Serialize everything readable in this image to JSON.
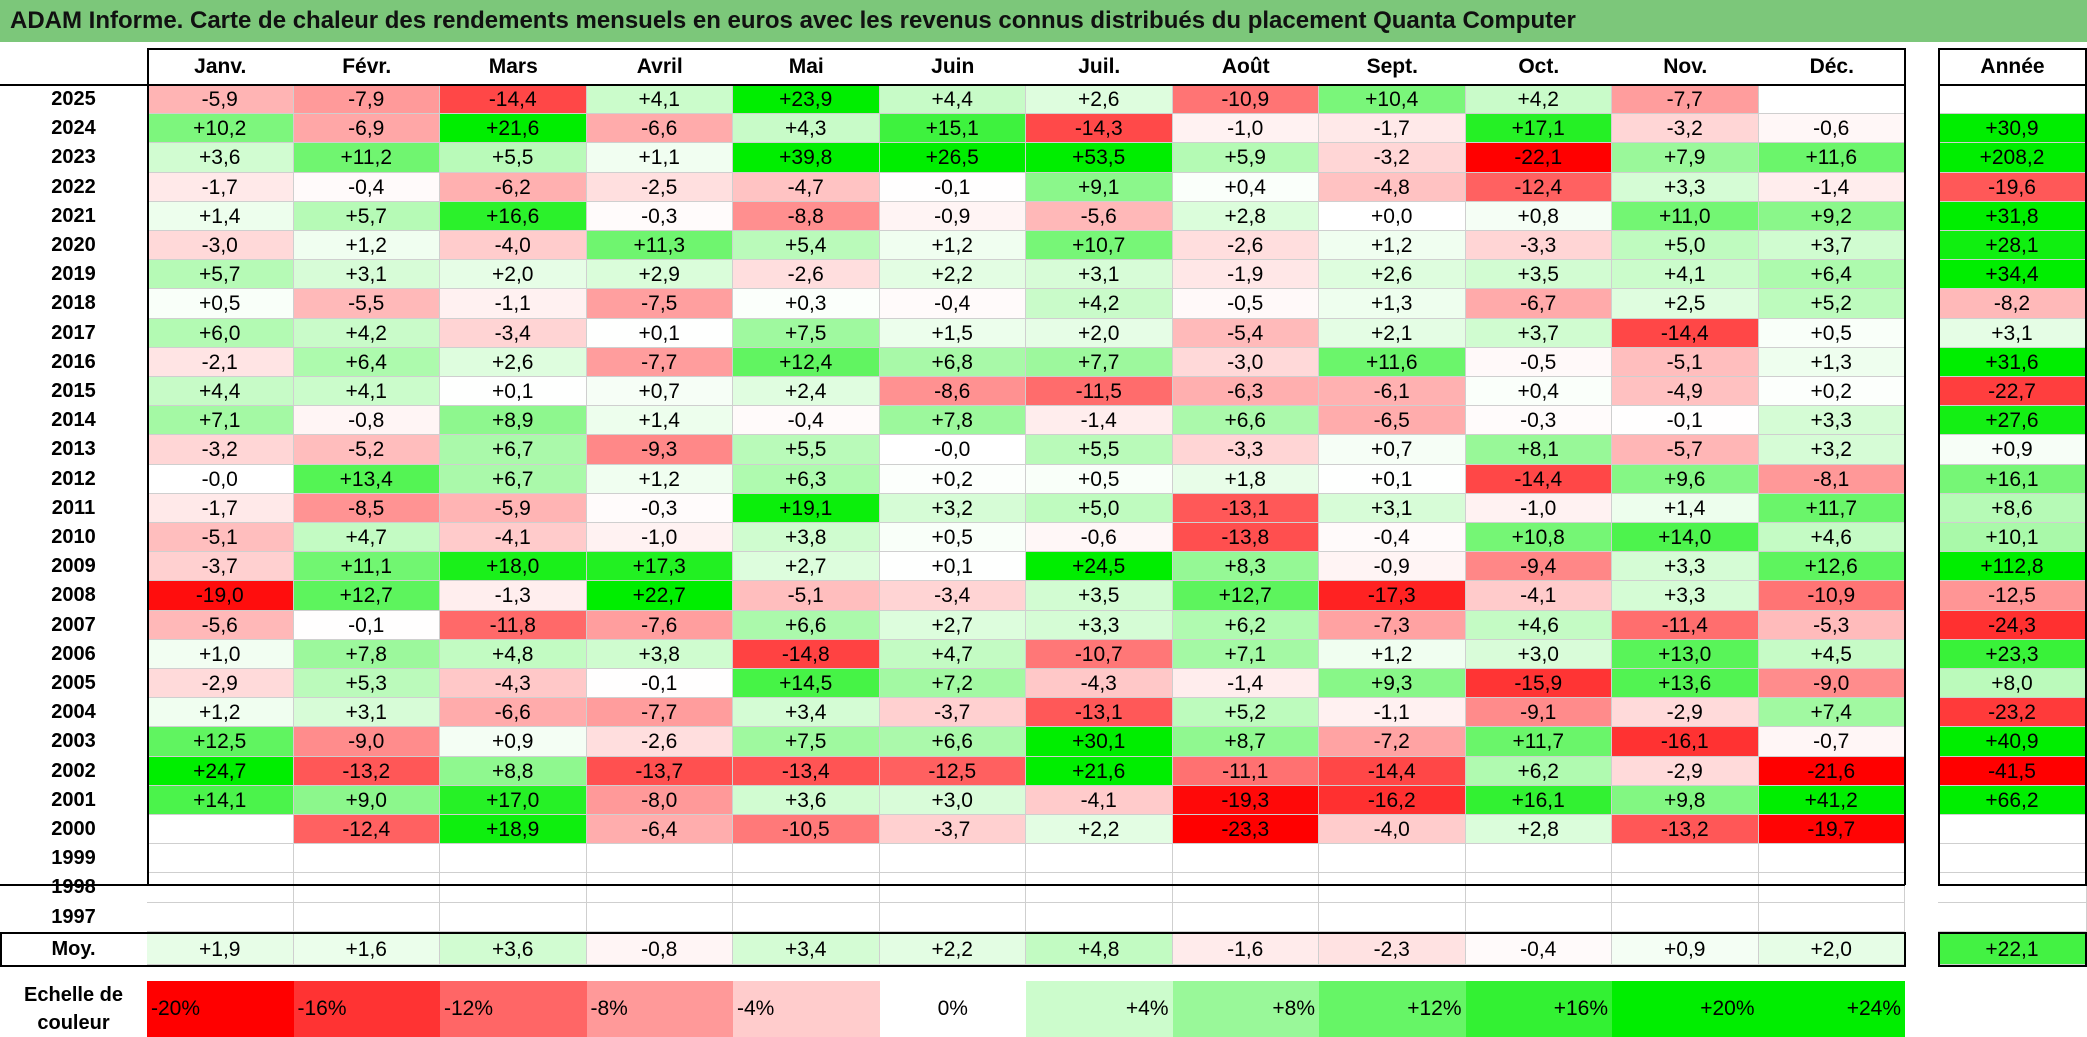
{
  "title": "ADAM Informe. Carte de chaleur des rendements mensuels en euros avec les revenus connus distribués du placement Quanta Computer",
  "chart_data": {
    "type": "heatmap",
    "columns": [
      "Janv.",
      "Févr.",
      "Mars",
      "Avril",
      "Mai",
      "Juin",
      "Juil.",
      "Août",
      "Sept.",
      "Oct.",
      "Nov.",
      "Déc."
    ],
    "annual_header": "Année",
    "rows": [
      {
        "year": "2025",
        "months": [
          "-5,9",
          "-7,9",
          "-14,4",
          "+4,1",
          "+23,9",
          "+4,4",
          "+2,6",
          "-10,9",
          "+10,4",
          "+4,2",
          "-7,7",
          ""
        ],
        "annual": ""
      },
      {
        "year": "2024",
        "months": [
          "+10,2",
          "-6,9",
          "+21,6",
          "-6,6",
          "+4,3",
          "+15,1",
          "-14,3",
          "-1,0",
          "-1,7",
          "+17,1",
          "-3,2",
          "-0,6"
        ],
        "annual": "+30,9"
      },
      {
        "year": "2023",
        "months": [
          "+3,6",
          "+11,2",
          "+5,5",
          "+1,1",
          "+39,8",
          "+26,5",
          "+53,5",
          "+5,9",
          "-3,2",
          "-22,1",
          "+7,9",
          "+11,6"
        ],
        "annual": "+208,2"
      },
      {
        "year": "2022",
        "months": [
          "-1,7",
          "-0,4",
          "-6,2",
          "-2,5",
          "-4,7",
          "-0,1",
          "+9,1",
          "+0,4",
          "-4,8",
          "-12,4",
          "+3,3",
          "-1,4"
        ],
        "annual": "-19,6"
      },
      {
        "year": "2021",
        "months": [
          "+1,4",
          "+5,7",
          "+16,6",
          "-0,3",
          "-8,8",
          "-0,9",
          "-5,6",
          "+2,8",
          "+0,0",
          "+0,8",
          "+11,0",
          "+9,2"
        ],
        "annual": "+31,8"
      },
      {
        "year": "2020",
        "months": [
          "-3,0",
          "+1,2",
          "-4,0",
          "+11,3",
          "+5,4",
          "+1,2",
          "+10,7",
          "-2,6",
          "+1,2",
          "-3,3",
          "+5,0",
          "+3,7"
        ],
        "annual": "+28,1"
      },
      {
        "year": "2019",
        "months": [
          "+5,7",
          "+3,1",
          "+2,0",
          "+2,9",
          "-2,6",
          "+2,2",
          "+3,1",
          "-1,9",
          "+2,6",
          "+3,5",
          "+4,1",
          "+6,4"
        ],
        "annual": "+34,4"
      },
      {
        "year": "2018",
        "months": [
          "+0,5",
          "-5,5",
          "-1,1",
          "-7,5",
          "+0,3",
          "-0,4",
          "+4,2",
          "-0,5",
          "+1,3",
          "-6,7",
          "+2,5",
          "+5,2"
        ],
        "annual": "-8,2"
      },
      {
        "year": "2017",
        "months": [
          "+6,0",
          "+4,2",
          "-3,4",
          "+0,1",
          "+7,5",
          "+1,5",
          "+2,0",
          "-5,4",
          "+2,1",
          "+3,7",
          "-14,4",
          "+0,5"
        ],
        "annual": "+3,1"
      },
      {
        "year": "2016",
        "months": [
          "-2,1",
          "+6,4",
          "+2,6",
          "-7,7",
          "+12,4",
          "+6,8",
          "+7,7",
          "-3,0",
          "+11,6",
          "-0,5",
          "-5,1",
          "+1,3"
        ],
        "annual": "+31,6"
      },
      {
        "year": "2015",
        "months": [
          "+4,4",
          "+4,1",
          "+0,1",
          "+0,7",
          "+2,4",
          "-8,6",
          "-11,5",
          "-6,3",
          "-6,1",
          "+0,4",
          "-4,9",
          "+0,2"
        ],
        "annual": "-22,7"
      },
      {
        "year": "2014",
        "months": [
          "+7,1",
          "-0,8",
          "+8,9",
          "+1,4",
          "-0,4",
          "+7,8",
          "-1,4",
          "+6,6",
          "-6,5",
          "-0,3",
          "-0,1",
          "+3,3"
        ],
        "annual": "+27,6"
      },
      {
        "year": "2013",
        "months": [
          "-3,2",
          "-5,2",
          "+6,7",
          "-9,3",
          "+5,5",
          "-0,0",
          "+5,5",
          "-3,3",
          "+0,7",
          "+8,1",
          "-5,7",
          "+3,2"
        ],
        "annual": "+0,9"
      },
      {
        "year": "2012",
        "months": [
          "-0,0",
          "+13,4",
          "+6,7",
          "+1,2",
          "+6,3",
          "+0,2",
          "+0,5",
          "+1,8",
          "+0,1",
          "-14,4",
          "+9,6",
          "-8,1"
        ],
        "annual": "+16,1"
      },
      {
        "year": "2011",
        "months": [
          "-1,7",
          "-8,5",
          "-5,9",
          "-0,3",
          "+19,1",
          "+3,2",
          "+5,0",
          "-13,1",
          "+3,1",
          "-1,0",
          "+1,4",
          "+11,7"
        ],
        "annual": "+8,6"
      },
      {
        "year": "2010",
        "months": [
          "-5,1",
          "+4,7",
          "-4,1",
          "-1,0",
          "+3,8",
          "+0,5",
          "-0,6",
          "-13,8",
          "-0,4",
          "+10,8",
          "+14,0",
          "+4,6"
        ],
        "annual": "+10,1"
      },
      {
        "year": "2009",
        "months": [
          "-3,7",
          "+11,1",
          "+18,0",
          "+17,3",
          "+2,7",
          "+0,1",
          "+24,5",
          "+8,3",
          "-0,9",
          "-9,4",
          "+3,3",
          "+12,6"
        ],
        "annual": "+112,8"
      },
      {
        "year": "2008",
        "months": [
          "-19,0",
          "+12,7",
          "-1,3",
          "+22,7",
          "-5,1",
          "-3,4",
          "+3,5",
          "+12,7",
          "-17,3",
          "-4,1",
          "+3,3",
          "-10,9"
        ],
        "annual": "-12,5"
      },
      {
        "year": "2007",
        "months": [
          "-5,6",
          "-0,1",
          "-11,8",
          "-7,6",
          "+6,6",
          "+2,7",
          "+3,3",
          "+6,2",
          "-7,3",
          "+4,6",
          "-11,4",
          "-5,3"
        ],
        "annual": "-24,3"
      },
      {
        "year": "2006",
        "months": [
          "+1,0",
          "+7,8",
          "+4,8",
          "+3,8",
          "-14,8",
          "+4,7",
          "-10,7",
          "+7,1",
          "+1,2",
          "+3,0",
          "+13,0",
          "+4,5"
        ],
        "annual": "+23,3"
      },
      {
        "year": "2005",
        "months": [
          "-2,9",
          "+5,3",
          "-4,3",
          "-0,1",
          "+14,5",
          "+7,2",
          "-4,3",
          "-1,4",
          "+9,3",
          "-15,9",
          "+13,6",
          "-9,0"
        ],
        "annual": "+8,0"
      },
      {
        "year": "2004",
        "months": [
          "+1,2",
          "+3,1",
          "-6,6",
          "-7,7",
          "+3,4",
          "-3,7",
          "-13,1",
          "+5,2",
          "-1,1",
          "-9,1",
          "-2,9",
          "+7,4"
        ],
        "annual": "-23,2"
      },
      {
        "year": "2003",
        "months": [
          "+12,5",
          "-9,0",
          "+0,9",
          "-2,6",
          "+7,5",
          "+6,6",
          "+30,1",
          "+8,7",
          "-7,2",
          "+11,7",
          "-16,1",
          "-0,7"
        ],
        "annual": "+40,9"
      },
      {
        "year": "2002",
        "months": [
          "+24,7",
          "-13,2",
          "+8,8",
          "-13,7",
          "-13,4",
          "-12,5",
          "+21,6",
          "-11,1",
          "-14,4",
          "+6,2",
          "-2,9",
          "-21,6"
        ],
        "annual": "-41,5"
      },
      {
        "year": "2001",
        "months": [
          "+14,1",
          "+9,0",
          "+17,0",
          "-8,0",
          "+3,6",
          "+3,0",
          "-4,1",
          "-19,3",
          "-16,2",
          "+16,1",
          "+9,8",
          "+41,2"
        ],
        "annual": "+66,2"
      },
      {
        "year": "2000",
        "months": [
          "",
          "-12,4",
          "+18,9",
          "-6,4",
          "-10,5",
          "-3,7",
          "+2,2",
          "-23,3",
          "-4,0",
          "+2,8",
          "-13,2",
          "-19,7"
        ],
        "annual": ""
      },
      {
        "year": "1999",
        "months": [
          "",
          "",
          "",
          "",
          "",
          "",
          "",
          "",
          "",
          "",
          "",
          ""
        ],
        "annual": ""
      },
      {
        "year": "1998",
        "months": [
          "",
          "",
          "",
          "",
          "",
          "",
          "",
          "",
          "",
          "",
          "",
          ""
        ],
        "annual": ""
      },
      {
        "year": "1997",
        "months": [
          "",
          "",
          "",
          "",
          "",
          "",
          "",
          "",
          "",
          "",
          "",
          ""
        ],
        "annual": ""
      }
    ],
    "average": {
      "label": "Moy.",
      "months": [
        "+1,9",
        "+1,6",
        "+3,6",
        "-0,8",
        "+3,4",
        "+2,2",
        "+4,8",
        "-1,6",
        "-2,3",
        "-0,4",
        "+0,9",
        "+2,0"
      ],
      "annual": "+22,1"
    },
    "scale": {
      "label_line1": "Echelle de",
      "label_line2": "couleur",
      "steps": [
        {
          "text": "-20%",
          "value": -20
        },
        {
          "text": "-16%",
          "value": -16
        },
        {
          "text": "-12%",
          "value": -12
        },
        {
          "text": "-8%",
          "value": -8
        },
        {
          "text": "-4%",
          "value": -4
        },
        {
          "text": "0%",
          "value": 0
        },
        {
          "text": "+4%",
          "value": 4
        },
        {
          "text": "+8%",
          "value": 8
        },
        {
          "text": "+12%",
          "value": 12
        },
        {
          "text": "+16%",
          "value": 16
        },
        {
          "text": "+20%",
          "value": 20
        },
        {
          "text": "+24%",
          "value": 24
        }
      ],
      "colors": {
        "negative_max": "#ff0000",
        "neutral": "#ffffff",
        "positive_max": "#00ee00"
      }
    }
  }
}
